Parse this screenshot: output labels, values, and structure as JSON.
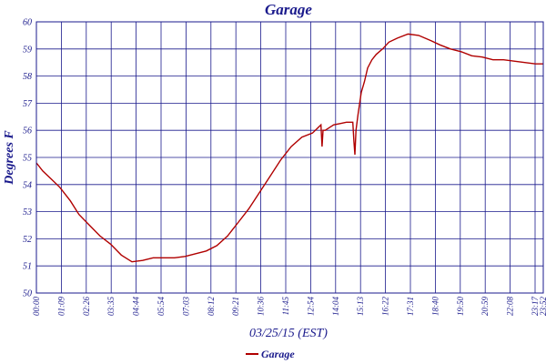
{
  "chart_data": {
    "type": "line",
    "title": "Garage",
    "xlabel": "03/25/15 (EST)",
    "ylabel": "Degrees F",
    "ylim": [
      50,
      60
    ],
    "yticks": [
      "50",
      "51",
      "52",
      "53",
      "54",
      "55",
      "56",
      "57",
      "58",
      "59",
      "60"
    ],
    "xticks": [
      "00:00",
      "01:09",
      "02:26",
      "03:35",
      "04:44",
      "05:54",
      "07:03",
      "08:12",
      "09:21",
      "10:36",
      "11:45",
      "12:54",
      "14:04",
      "15:13",
      "16:22",
      "17:31",
      "18:40",
      "19:50",
      "20:59",
      "22:08",
      "23:17",
      "23:52"
    ],
    "grid": true,
    "legend_position": "bottom-center",
    "colors": {
      "series": "#b00000",
      "grid": "#1a1a8c",
      "text": "#1a1a8c"
    },
    "series": [
      {
        "name": "Garage",
        "x": [
          0,
          0.3,
          0.7,
          1.1,
          1.6,
          2.0,
          2.5,
          3.0,
          3.5,
          4.0,
          4.5,
          5.0,
          5.5,
          6.0,
          6.5,
          7.0,
          7.5,
          8.0,
          8.5,
          9.0,
          9.5,
          10.0,
          10.5,
          11.0,
          11.5,
          12.0,
          12.5,
          13.0,
          13.2,
          13.4,
          13.45,
          13.5,
          13.6,
          13.8,
          14.0,
          14.3,
          14.6,
          14.9,
          14.95,
          15.0,
          15.05,
          15.15,
          15.3,
          15.45,
          15.6,
          15.8,
          16.0,
          16.3,
          16.6,
          17.0,
          17.5,
          18.0,
          18.3,
          18.6,
          19.0,
          19.5,
          20.0,
          20.5,
          21.0,
          21.5,
          22.0,
          22.5,
          23.0,
          23.5,
          23.85
        ],
        "y": [
          54.8,
          54.5,
          54.2,
          53.9,
          53.4,
          52.9,
          52.5,
          52.1,
          51.8,
          51.4,
          51.15,
          51.2,
          51.3,
          51.3,
          51.3,
          51.35,
          51.45,
          51.55,
          51.75,
          52.1,
          52.6,
          53.1,
          53.7,
          54.3,
          54.9,
          55.4,
          55.75,
          55.9,
          56.05,
          56.2,
          55.4,
          56.0,
          56.0,
          56.1,
          56.2,
          56.25,
          56.3,
          56.3,
          55.6,
          55.1,
          56.0,
          56.6,
          57.4,
          57.8,
          58.3,
          58.6,
          58.8,
          59.0,
          59.25,
          59.4,
          59.55,
          59.5,
          59.4,
          59.3,
          59.15,
          59.0,
          58.9,
          58.75,
          58.7,
          58.6,
          58.6,
          58.55,
          58.5,
          58.45,
          58.45
        ]
      }
    ]
  }
}
